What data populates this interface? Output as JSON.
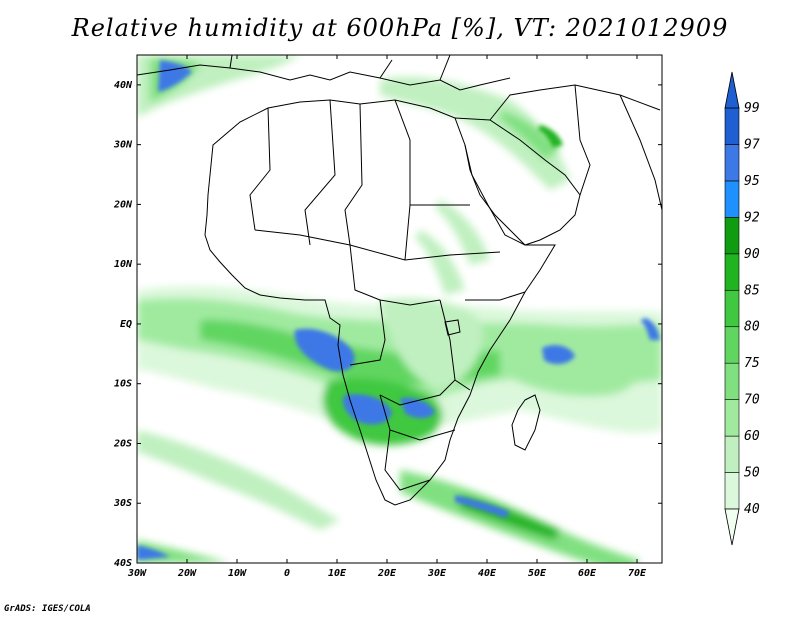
{
  "title": "Relative humidity at 600hPa [%], VT: 2021012909",
  "credit": "GrADS: IGES/COLA",
  "map": {
    "lat_labels": [
      "40N",
      "30N",
      "20N",
      "10N",
      "EQ",
      "10S",
      "20S",
      "30S",
      "40S"
    ],
    "lon_labels": [
      "30W",
      "20W",
      "10W",
      "0",
      "10E",
      "20E",
      "30E",
      "40E",
      "50E",
      "60E",
      "70E"
    ]
  },
  "colorbar": {
    "levels": [
      "40",
      "50",
      "60",
      "70",
      "75",
      "80",
      "85",
      "90",
      "92",
      "95",
      "97",
      "99"
    ],
    "colors": [
      "#f0fff0",
      "#dcf8dc",
      "#c0f0c0",
      "#a0eaa0",
      "#80e080",
      "#60d660",
      "#40c840",
      "#20b420",
      "#109c10",
      "#1e90ff",
      "#3c78e6",
      "#1e5fd2"
    ]
  },
  "chart_data": {
    "type": "heatmap",
    "title": "Relative humidity at 600hPa [%], VT: 2021012909",
    "variable": "Relative humidity at 600hPa",
    "units": "%",
    "valid_time": "2021012909",
    "lon_range": [
      -30,
      75
    ],
    "lat_range": [
      -40,
      45
    ],
    "contour_levels": [
      40,
      50,
      60,
      70,
      75,
      80,
      85,
      90,
      92,
      95,
      97,
      99
    ]
  }
}
